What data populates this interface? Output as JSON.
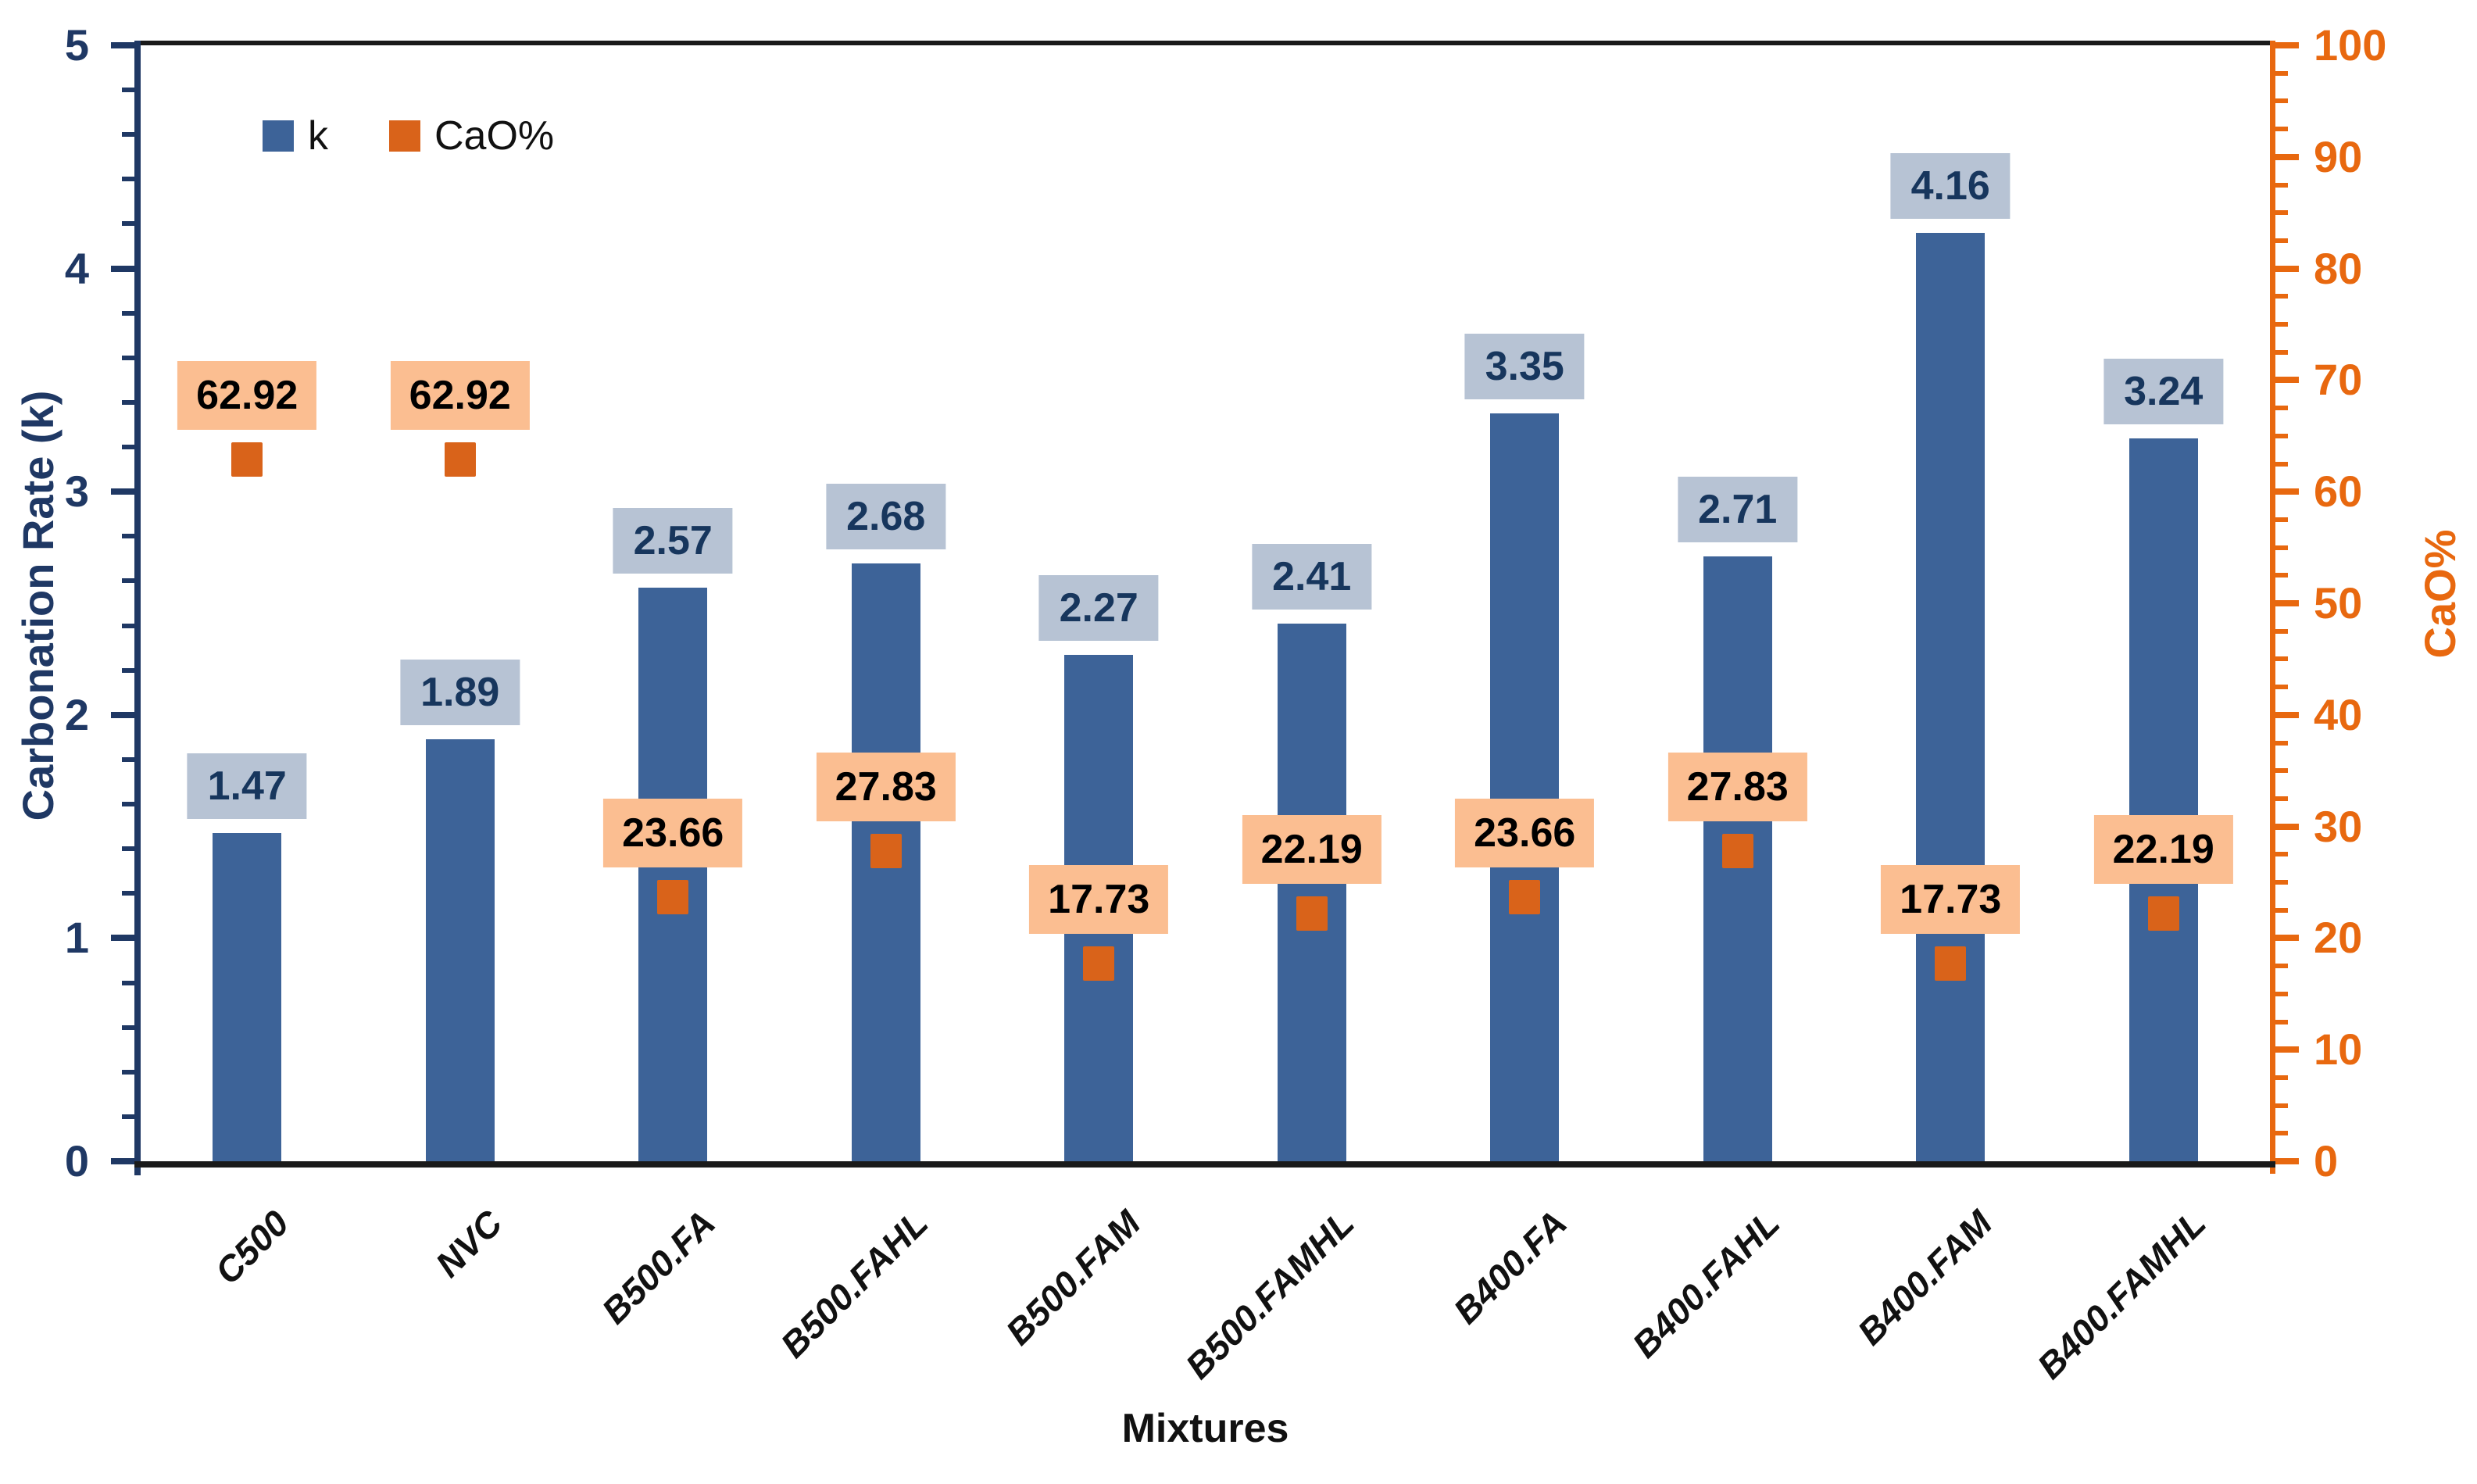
{
  "chart_data": {
    "type": "bar",
    "title": "",
    "categories": [
      "C500",
      "NVC",
      "B500.FA",
      "B500.FAHL",
      "B500.FAM",
      "B500.FAMHL",
      "B400.FA",
      "B400.FAHL",
      "B400.FAM",
      "B400.FAMHL"
    ],
    "series": [
      {
        "name": "k",
        "type": "bar",
        "axis": "left",
        "values": [
          1.47,
          1.89,
          2.57,
          2.68,
          2.27,
          2.41,
          3.35,
          2.71,
          4.16,
          3.24
        ]
      },
      {
        "name": "CaO%",
        "type": "point",
        "axis": "right",
        "values": [
          62.92,
          62.92,
          23.66,
          27.83,
          17.73,
          22.19,
          23.66,
          27.83,
          17.73,
          22.19
        ]
      }
    ],
    "xlabel": "Mixtures",
    "ylabel_left": "Carbonation Rate (k)",
    "ylabel_right": "CaO%",
    "ylim_left": [
      0,
      5
    ],
    "ylim_right": [
      0,
      100
    ],
    "left_ticks": [
      0,
      1,
      2,
      3,
      4,
      5
    ],
    "right_ticks": [
      0,
      10,
      20,
      30,
      40,
      50,
      60,
      70,
      80,
      90,
      100
    ],
    "left_minor_step": 0.2,
    "right_minor_step": 2.5,
    "grid": false,
    "legend": [
      "k",
      "CaO%"
    ],
    "legend_position": "top-left-inside",
    "colors": {
      "bar": "#3D6398",
      "bar_label_bg": "#B7C3D4",
      "bar_label_text": "#17365D",
      "marker": "#D9631A",
      "marker_label_bg": "#FBBE91",
      "marker_label_text": "#000000",
      "left_axis": "#1F3864",
      "right_axis": "#E8680F",
      "frame": "#1A1A1A",
      "text": "#111111"
    }
  }
}
